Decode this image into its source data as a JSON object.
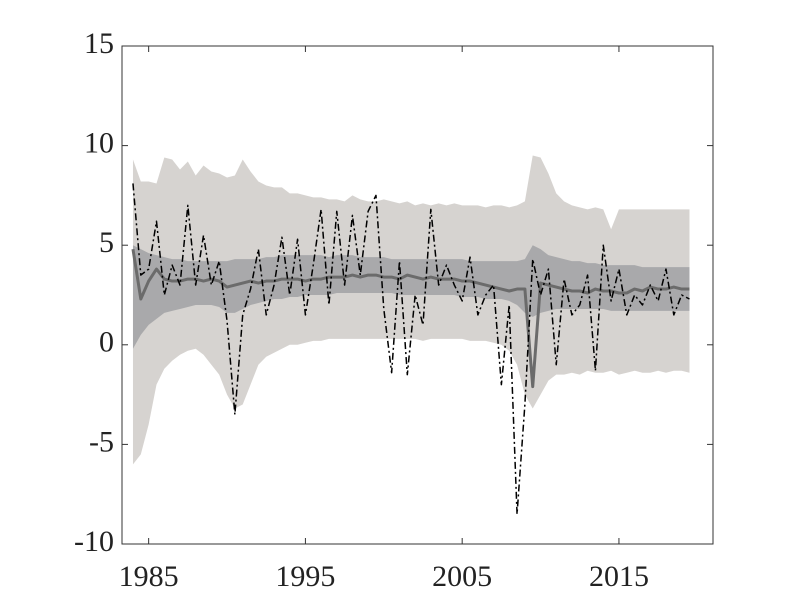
{
  "chart_data": {
    "type": "fan",
    "x": [
      1984,
      1984.5,
      1985,
      1985.5,
      1986,
      1986.5,
      1987,
      1987.5,
      1988,
      1988.5,
      1989,
      1989.5,
      1990,
      1990.5,
      1991,
      1991.5,
      1992,
      1992.5,
      1993,
      1993.5,
      1994,
      1994.5,
      1995,
      1995.5,
      1996,
      1996.5,
      1997,
      1997.5,
      1998,
      1998.5,
      1999,
      1999.5,
      2000,
      2000.5,
      2001,
      2001.5,
      2002,
      2002.5,
      2003,
      2003.5,
      2004,
      2004.5,
      2005,
      2005.5,
      2006,
      2006.5,
      2007,
      2007.5,
      2008,
      2008.5,
      2009,
      2009.5,
      2010,
      2010.5,
      2011,
      2011.5,
      2012,
      2012.5,
      2013,
      2013.5,
      2014,
      2014.5,
      2015,
      2015.5,
      2016,
      2016.5,
      2017,
      2017.5,
      2018,
      2018.5,
      2019,
      2019.5
    ],
    "bands": [
      {
        "color": "#d6d3d0",
        "upper": [
          9.3,
          8.2,
          8.2,
          8.1,
          9.4,
          9.3,
          8.8,
          9.2,
          8.5,
          9.0,
          8.7,
          8.6,
          8.4,
          8.5,
          9.3,
          8.7,
          8.2,
          8.0,
          7.9,
          7.9,
          7.6,
          7.6,
          7.5,
          7.4,
          7.4,
          7.3,
          7.3,
          7.2,
          7.5,
          7.3,
          7.2,
          7.2,
          7.3,
          7.2,
          7.1,
          7.2,
          7.0,
          7.1,
          7.0,
          7.1,
          7.0,
          7.1,
          7.0,
          7.0,
          7.0,
          6.9,
          7.0,
          7.0,
          6.9,
          7.0,
          7.2,
          9.5,
          9.4,
          8.6,
          7.6,
          7.2,
          7.0,
          6.9,
          6.8,
          6.9,
          6.8,
          5.8,
          6.8,
          6.8,
          6.8,
          6.8,
          6.8,
          6.8,
          6.8,
          6.8,
          6.8,
          6.8
        ],
        "lower": [
          -6.0,
          -5.5,
          -4.0,
          -2.0,
          -1.2,
          -0.8,
          -0.5,
          -0.3,
          -0.2,
          -0.5,
          -1.0,
          -1.5,
          -2.5,
          -3.2,
          -3.0,
          -2.0,
          -1.0,
          -0.6,
          -0.4,
          -0.2,
          0.0,
          0.0,
          0.1,
          0.2,
          0.2,
          0.3,
          0.3,
          0.3,
          0.3,
          0.3,
          0.3,
          0.3,
          0.3,
          0.3,
          0.3,
          0.3,
          0.3,
          0.2,
          0.3,
          0.3,
          0.3,
          0.3,
          0.3,
          0.2,
          0.2,
          0.2,
          0.1,
          0.0,
          -0.3,
          -1.0,
          -2.5,
          -3.2,
          -2.5,
          -1.8,
          -1.5,
          -1.5,
          -1.4,
          -1.5,
          -1.3,
          -1.4,
          -1.4,
          -1.3,
          -1.5,
          -1.4,
          -1.3,
          -1.4,
          -1.4,
          -1.3,
          -1.4,
          -1.3,
          -1.3,
          -1.4
        ]
      },
      {
        "color": "#a9a9ab",
        "upper": [
          5.0,
          4.8,
          4.6,
          4.5,
          4.4,
          4.3,
          4.3,
          4.2,
          4.2,
          4.2,
          4.2,
          4.2,
          4.2,
          4.3,
          4.3,
          4.3,
          4.3,
          4.4,
          4.4,
          4.5,
          4.5,
          4.5,
          4.5,
          4.5,
          4.5,
          4.4,
          4.5,
          4.5,
          4.5,
          4.4,
          4.4,
          4.4,
          4.4,
          4.3,
          4.3,
          4.3,
          4.3,
          4.3,
          4.3,
          4.3,
          4.3,
          4.3,
          4.3,
          4.2,
          4.2,
          4.2,
          4.2,
          4.2,
          4.2,
          4.2,
          4.3,
          5.0,
          4.8,
          4.5,
          4.4,
          4.3,
          4.2,
          4.2,
          4.1,
          4.1,
          4.0,
          4.0,
          4.0,
          4.0,
          4.0,
          3.9,
          3.9,
          3.9,
          3.9,
          3.9,
          3.9,
          3.9
        ],
        "lower": [
          -0.2,
          0.5,
          1.0,
          1.3,
          1.6,
          1.7,
          1.8,
          1.9,
          2.0,
          2.0,
          2.0,
          1.9,
          1.6,
          1.6,
          1.8,
          2.0,
          2.1,
          2.2,
          2.3,
          2.3,
          2.4,
          2.4,
          2.5,
          2.5,
          2.5,
          2.5,
          2.6,
          2.6,
          2.6,
          2.6,
          2.6,
          2.6,
          2.6,
          2.6,
          2.5,
          2.5,
          2.5,
          2.5,
          2.5,
          2.5,
          2.5,
          2.5,
          2.4,
          2.4,
          2.4,
          2.3,
          2.3,
          2.3,
          2.2,
          2.0,
          1.6,
          1.4,
          1.6,
          1.7,
          1.8,
          1.8,
          1.8,
          1.8,
          1.8,
          1.8,
          1.8,
          1.7,
          1.7,
          1.7,
          1.7,
          1.7,
          1.7,
          1.7,
          1.7,
          1.7,
          1.7,
          1.7
        ]
      }
    ],
    "series": [
      {
        "color": "#6b6b6b",
        "style": "solid",
        "values": [
          4.8,
          2.3,
          3.2,
          3.8,
          3.3,
          3.2,
          3.2,
          3.3,
          3.3,
          3.2,
          3.3,
          3.2,
          2.9,
          3.0,
          3.1,
          3.2,
          3.1,
          3.2,
          3.2,
          3.3,
          3.3,
          3.3,
          3.2,
          3.3,
          3.3,
          3.4,
          3.4,
          3.4,
          3.5,
          3.4,
          3.5,
          3.5,
          3.4,
          3.4,
          3.3,
          3.5,
          3.4,
          3.3,
          3.4,
          3.3,
          3.3,
          3.3,
          3.2,
          3.2,
          3.1,
          3.0,
          2.9,
          2.8,
          2.7,
          2.8,
          2.8,
          -2.1,
          3.1,
          3.0,
          2.9,
          2.8,
          2.7,
          2.7,
          2.6,
          2.8,
          2.7,
          2.7,
          2.6,
          2.6,
          2.8,
          2.7,
          2.9,
          2.8,
          2.8,
          2.9,
          2.8,
          2.8
        ]
      },
      {
        "color": "#000000",
        "style": "dash-dot",
        "values": [
          8.1,
          3.5,
          3.8,
          6.2,
          2.5,
          4.0,
          3.0,
          7.0,
          3.0,
          5.5,
          3.0,
          4.2,
          1.2,
          -3.5,
          1.5,
          2.8,
          4.8,
          1.5,
          3.0,
          5.4,
          2.5,
          5.3,
          1.5,
          4.0,
          6.8,
          2.0,
          6.7,
          3.0,
          6.5,
          3.5,
          6.7,
          7.5,
          1.8,
          -1.4,
          4.2,
          -1.5,
          2.5,
          1.0,
          6.8,
          3.0,
          4.0,
          3.0,
          2.2,
          4.4,
          1.5,
          2.5,
          3.0,
          -2.0,
          2.0,
          -8.5,
          -3.0,
          4.3,
          2.5,
          3.8,
          -1.0,
          3.3,
          1.5,
          2.0,
          3.5,
          -1.3,
          5.0,
          2.2,
          3.8,
          1.5,
          2.5,
          2.0,
          3.0,
          2.2,
          3.8,
          1.5,
          2.5,
          2.3
        ]
      }
    ],
    "xlim": [
      1983.3,
      2021
    ],
    "xticks": [
      1985,
      1995,
      2005,
      2015
    ],
    "ylim": [
      -10,
      15
    ],
    "yticks": [
      -10,
      -5,
      0,
      5,
      10,
      15
    ],
    "grid": false
  }
}
